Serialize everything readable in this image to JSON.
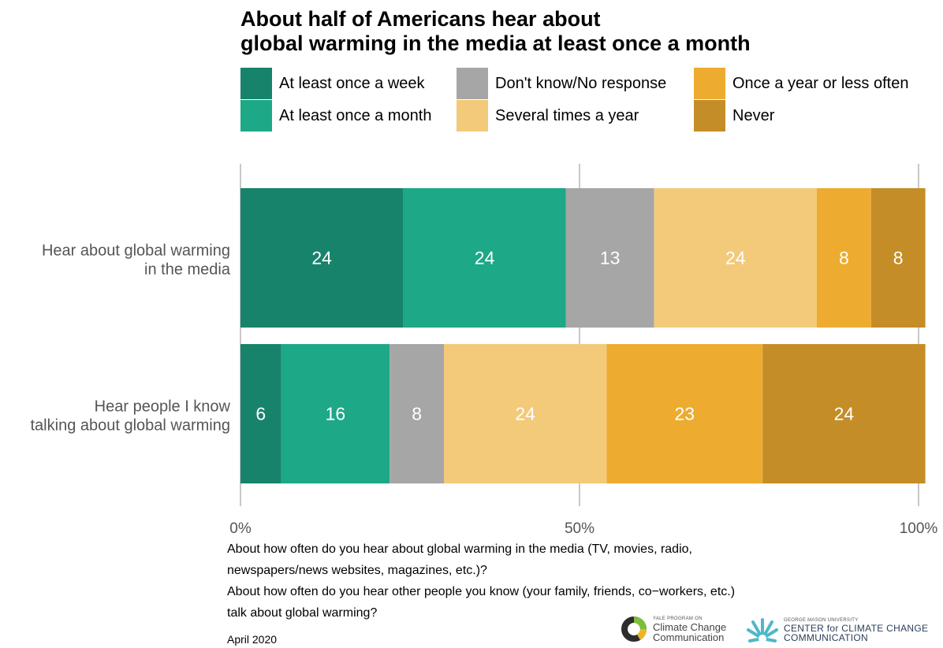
{
  "title_lines": [
    "About half of Americans hear about",
    "global warming in the media at least once a month"
  ],
  "legend": [
    {
      "label": "At least once a week",
      "color": "#17836a"
    },
    {
      "label": "At least once a month",
      "color": "#1da887"
    },
    {
      "label": "Don't know/No response",
      "color": "#a6a6a6"
    },
    {
      "label": "Several times a year",
      "color": "#f3ca7a"
    },
    {
      "label": "Once a year or less often",
      "color": "#edac2f"
    },
    {
      "label": "Never",
      "color": "#c48d27"
    }
  ],
  "chart_data": {
    "type": "bar",
    "orientation": "horizontal",
    "stacked": true,
    "categories": [
      [
        "Hear about global warming",
        "in the media"
      ],
      [
        "Hear people I know",
        "talking about global warming"
      ]
    ],
    "series": [
      {
        "name": "At least once a week",
        "values": [
          24,
          6
        ]
      },
      {
        "name": "At least once a month",
        "values": [
          24,
          16
        ]
      },
      {
        "name": "Don't know/No response",
        "values": [
          13,
          8
        ]
      },
      {
        "name": "Several times a year",
        "values": [
          24,
          24
        ]
      },
      {
        "name": "Once a year or less often",
        "values": [
          8,
          23
        ]
      },
      {
        "name": "Never",
        "values": [
          8,
          24
        ]
      }
    ],
    "x_ticks": [
      "0%",
      "50%",
      "100%"
    ],
    "xlim": [
      0,
      100
    ],
    "grid": true,
    "legend_position": "top"
  },
  "notes": [
    "About how often do you hear about global warming in the media (TV, movies, radio,",
    "newspapers/news websites, magazines, etc.)?",
    "About how often do you hear other people you know (your family, friends, co−workers, etc.)",
    "talk about global warming?"
  ],
  "date": "April 2020",
  "logos": {
    "yale": {
      "small": "YALE PROGRAM ON",
      "line1": "Climate Change",
      "line2": "Communication"
    },
    "gmu": {
      "small": "GEORGE MASON UNIVERSITY",
      "line1": "CENTER for CLIMATE CHANGE",
      "line2": "COMMUNICATION"
    }
  }
}
